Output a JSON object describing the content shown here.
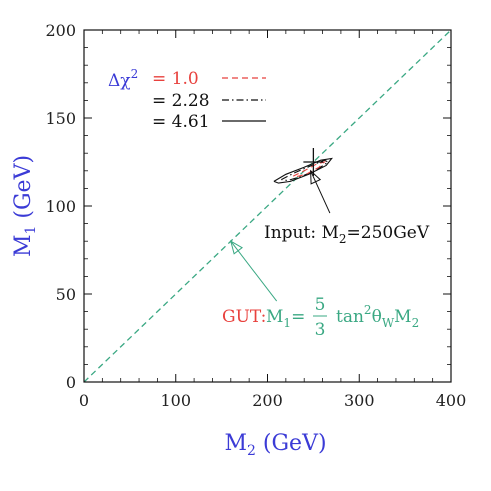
{
  "chart_data": {
    "type": "line",
    "x_axis": {
      "label": "M",
      "label_sub": "2",
      "unit": "(GeV)",
      "range": [
        0,
        400
      ],
      "ticks": [
        0,
        100,
        200,
        300,
        400
      ],
      "tick_labels": [
        "0",
        "100",
        "200",
        "300",
        "400"
      ]
    },
    "y_axis": {
      "label": "M",
      "label_sub": "1",
      "unit": "(GeV)",
      "range": [
        0,
        200
      ],
      "ticks": [
        0,
        50,
        100,
        150,
        200
      ],
      "tick_labels": [
        "0",
        "50",
        "100",
        "150",
        "200"
      ]
    },
    "grid": false,
    "legend": {
      "placement": "top-left",
      "title_symbol": "Δχ",
      "title_sup": "2",
      "entries": [
        {
          "prefix": "=",
          "value": "1.0",
          "style": "dashed",
          "color": "#e8413d"
        },
        {
          "prefix": "=",
          "value": "2.28",
          "style": "dash-dot",
          "color": "#111111"
        },
        {
          "prefix": "=",
          "value": "4.61",
          "style": "solid",
          "color": "#111111"
        }
      ]
    },
    "series": [
      {
        "kind": "gut-line",
        "style": "dashed",
        "color": "#3aa883",
        "x": [
          0,
          400
        ],
        "y": [
          0,
          200
        ]
      },
      {
        "kind": "contour",
        "delta_chi2": "4.61",
        "style": "solid",
        "color": "#111111",
        "x": [
          207,
          220,
          240,
          258,
          270,
          264,
          245,
          225,
          212,
          207
        ],
        "y": [
          114,
          118,
          122,
          126,
          127,
          123,
          118,
          114,
          113,
          114
        ]
      },
      {
        "kind": "contour",
        "delta_chi2": "2.28",
        "style": "dash-dot",
        "color": "#111111",
        "x": [
          215,
          230,
          248,
          262,
          266,
          255,
          238,
          222,
          215
        ],
        "y": [
          115,
          119,
          123,
          126,
          125,
          121,
          117,
          114.5,
          115
        ]
      },
      {
        "kind": "contour",
        "delta_chi2": "1.0",
        "style": "dashed",
        "color": "#e8413d",
        "x": [
          228,
          240,
          254,
          262,
          256,
          242,
          230,
          228
        ],
        "y": [
          117,
          120,
          124,
          125,
          122,
          118,
          116.5,
          117
        ]
      }
    ],
    "input_point": {
      "x": 250,
      "y": 125
    },
    "annotations": {
      "input": {
        "text": "Input: M",
        "sub": "2",
        "tail": "=250GeV",
        "color": "#111111",
        "arrow_to": {
          "x": 247,
          "y": 120
        },
        "arrow_from": {
          "x": 268,
          "y": 96
        }
      },
      "gut": {
        "prefix": "GUT:",
        "prefix_color": "#e8413d",
        "lhs": "M",
        "lhs_sub": "1",
        "eq": "=",
        "num": "5",
        "den": "3",
        "rhs": "tan",
        "rhs_sup": "2",
        "theta": "θ",
        "theta_sub": "W",
        "rhs_tail": "M",
        "rhs_tail_sub": "2",
        "color": "#3aa883",
        "arrow_to": {
          "x": 160,
          "y": 80
        },
        "arrow_from": {
          "x": 210,
          "y": 46
        }
      }
    }
  }
}
